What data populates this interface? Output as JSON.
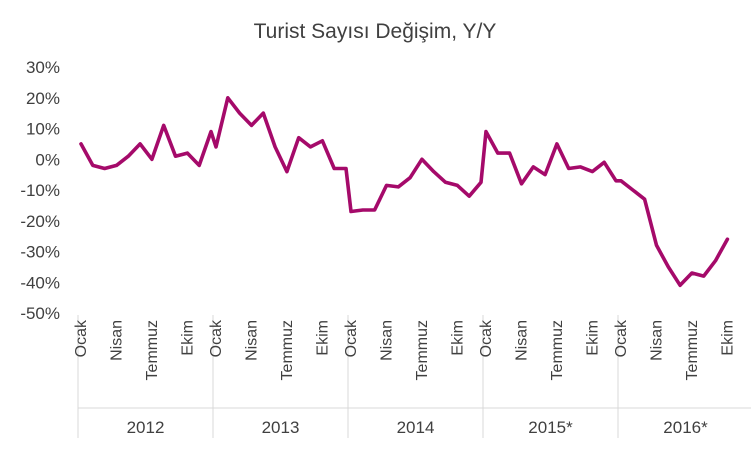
{
  "chart_data": {
    "type": "line",
    "title": "Turist Sayısı Değişim, Y/Y",
    "y_ticks": [
      "30%",
      "20%",
      "10%",
      "0%",
      "-10%",
      "-20%",
      "-30%",
      "-40%",
      "-50%"
    ],
    "y_tick_values": [
      30,
      20,
      10,
      0,
      -10,
      -20,
      -30,
      -40,
      -50
    ],
    "ylim": [
      -50,
      30
    ],
    "grid": false,
    "line_color": "#a50a6a",
    "years": [
      "2012",
      "2013",
      "2014",
      "2015*",
      "2016*"
    ],
    "month_labels": [
      "Ocak",
      "Nisan",
      "Temmuz",
      "Ekim"
    ],
    "month_label_indices": [
      0,
      3,
      6,
      9
    ],
    "series": [
      {
        "values": [
          5,
          -2,
          -3,
          -2,
          1,
          5,
          0,
          11,
          1,
          2,
          -2,
          9,
          4,
          20,
          15,
          11,
          15,
          4,
          -4,
          7,
          4,
          6,
          -3,
          -3,
          -17,
          -16.5,
          -16.5,
          -8.5,
          -9,
          -6,
          0,
          -4,
          -7.5,
          -8.5,
          -12,
          -7.5,
          9,
          2,
          2,
          -8,
          -2.5,
          -5,
          5,
          -3,
          -2.5,
          -4,
          -1,
          -7,
          -7,
          -10,
          -13,
          -28,
          -35,
          -41,
          -37,
          -38,
          -33,
          -26
        ]
      }
    ]
  }
}
